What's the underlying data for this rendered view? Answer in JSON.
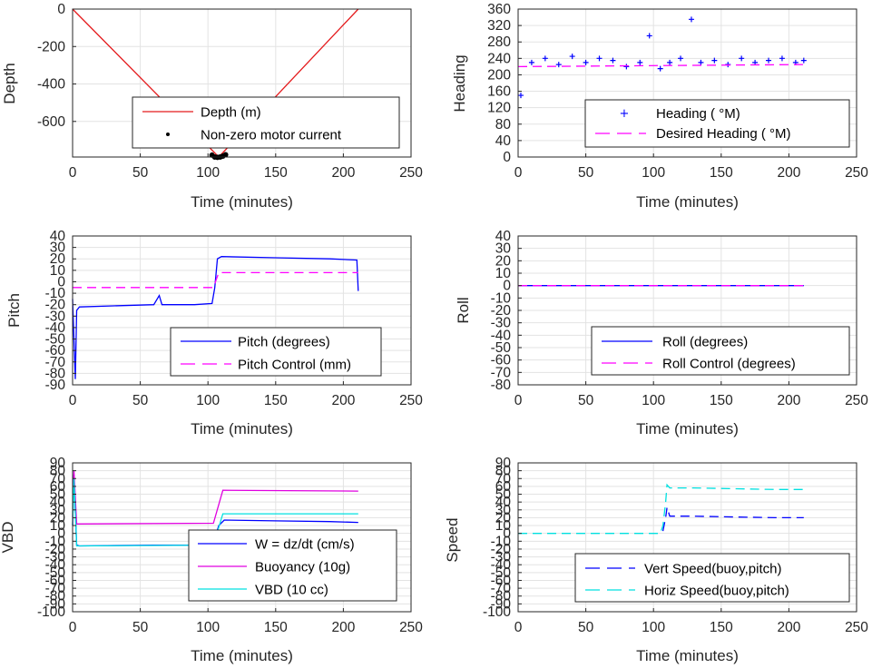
{
  "chart_data": [
    {
      "id": "depth",
      "type": "line",
      "xlabel": "Time (minutes)",
      "ylabel": "Depth",
      "xlim": [
        0,
        250
      ],
      "ylim": [
        -790,
        0
      ],
      "xticks": [
        0,
        50,
        100,
        150,
        200,
        250
      ],
      "yticks": [
        0,
        -200,
        -400,
        -600
      ],
      "series": [
        {
          "name": "Depth (m)",
          "color": "#e41a1c",
          "style": "solid",
          "x": [
            0,
            108,
            211
          ],
          "y": [
            0,
            -790,
            0
          ]
        },
        {
          "name": "Non-zero motor current",
          "color": "#000000",
          "style": "dots",
          "x": [
            103,
            105,
            107,
            109,
            111,
            113
          ],
          "y": [
            -780,
            -790,
            -792,
            -790,
            -785,
            -778
          ]
        }
      ],
      "legend": "bottom-right"
    },
    {
      "id": "heading",
      "type": "scatter",
      "xlabel": "Time (minutes)",
      "ylabel": "Heading",
      "xlim": [
        0,
        250
      ],
      "ylim": [
        0,
        360
      ],
      "xticks": [
        0,
        50,
        100,
        150,
        200,
        250
      ],
      "yticks": [
        0,
        40,
        80,
        120,
        160,
        200,
        240,
        280,
        320,
        360
      ],
      "series": [
        {
          "name": "Heading ( °M)",
          "color": "#0000ff",
          "style": "plus",
          "x": [
            2,
            10,
            20,
            30,
            40,
            50,
            60,
            70,
            80,
            90,
            97,
            105,
            112,
            120,
            128,
            135,
            145,
            155,
            165,
            175,
            185,
            195,
            205,
            211
          ],
          "y": [
            150,
            230,
            240,
            225,
            245,
            230,
            240,
            235,
            220,
            230,
            295,
            215,
            230,
            240,
            335,
            230,
            235,
            225,
            240,
            230,
            235,
            240,
            230,
            235
          ]
        },
        {
          "name": "Desired Heading ( °M)",
          "color": "#ff00ff",
          "style": "dashed",
          "x": [
            0,
            211
          ],
          "y": [
            220,
            225
          ]
        }
      ],
      "legend": "bottom-right"
    },
    {
      "id": "pitch",
      "type": "line",
      "xlabel": "Time (minutes)",
      "ylabel": "Pitch",
      "xlim": [
        0,
        250
      ],
      "ylim": [
        -90,
        40
      ],
      "xticks": [
        0,
        50,
        100,
        150,
        200,
        250
      ],
      "yticks": [
        40,
        30,
        20,
        10,
        0,
        -10,
        -20,
        -30,
        -40,
        -50,
        -60,
        -70,
        -80,
        -90
      ],
      "series": [
        {
          "name": "Pitch (degrees)",
          "color": "#0000ff",
          "style": "solid",
          "x": [
            0,
            2,
            3,
            5,
            30,
            60,
            64,
            66,
            90,
            103,
            105,
            107,
            110,
            150,
            190,
            210,
            211
          ],
          "y": [
            -15,
            -85,
            -25,
            -22,
            -21,
            -20,
            -12,
            -20,
            -20,
            -19,
            -5,
            20,
            22,
            21,
            20,
            19,
            -8
          ]
        },
        {
          "name": "Pitch Control (mm)",
          "color": "#ff00ff",
          "style": "dashed",
          "x": [
            0,
            10,
            104,
            108,
            211
          ],
          "y": [
            -5,
            -5,
            -5,
            8,
            8
          ]
        }
      ],
      "legend": "bottom-right"
    },
    {
      "id": "roll",
      "type": "line",
      "xlabel": "Time (minutes)",
      "ylabel": "Roll",
      "xlim": [
        0,
        250
      ],
      "ylim": [
        -80,
        40
      ],
      "xticks": [
        0,
        50,
        100,
        150,
        200,
        250
      ],
      "yticks": [
        40,
        30,
        20,
        10,
        0,
        -10,
        -20,
        -30,
        -40,
        -50,
        -60,
        -70,
        -80
      ],
      "series": [
        {
          "name": "Roll (degrees)",
          "color": "#0000ff",
          "style": "solid",
          "x": [
            0,
            211
          ],
          "y": [
            0,
            0
          ]
        },
        {
          "name": "Roll Control (degrees)",
          "color": "#ff00ff",
          "style": "dashed",
          "x": [
            0,
            211
          ],
          "y": [
            0,
            0
          ]
        }
      ],
      "legend": "bottom-right"
    },
    {
      "id": "vbd",
      "type": "line",
      "xlabel": "Time (minutes)",
      "ylabel": "VBD",
      "xlim": [
        0,
        250
      ],
      "ylim": [
        -100,
        90
      ],
      "xticks": [
        0,
        50,
        100,
        150,
        200,
        250
      ],
      "yticks": [
        90,
        80,
        70,
        60,
        50,
        40,
        30,
        20,
        10,
        0,
        -10,
        -20,
        -30,
        -40,
        -50,
        -60,
        -70,
        -80,
        -90,
        -100
      ],
      "series": [
        {
          "name": "W = dz/dt (cm/s)",
          "color": "#0000ff",
          "style": "solid",
          "x": [
            0,
            1,
            3,
            5,
            60,
            100,
            104,
            108,
            112,
            150,
            190,
            211
          ],
          "y": [
            10,
            75,
            -15,
            -16,
            -15,
            -15,
            -12,
            10,
            17,
            16,
            15,
            14
          ]
        },
        {
          "name": "Buoyancy (10g)",
          "color": "#e000e0",
          "style": "solid",
          "x": [
            0,
            1,
            3,
            104,
            111,
            211
          ],
          "y": [
            20,
            80,
            12,
            13,
            55,
            54
          ]
        },
        {
          "name": "VBD (10 cc)",
          "color": "#00e0e0",
          "style": "solid",
          "x": [
            0,
            1,
            3,
            104,
            111,
            211
          ],
          "y": [
            10,
            70,
            -16,
            -15,
            25,
            25
          ]
        }
      ],
      "legend": "bottom-right"
    },
    {
      "id": "speed",
      "type": "line",
      "xlabel": "Time (minutes)",
      "ylabel": "Speed",
      "xlim": [
        0,
        250
      ],
      "ylim": [
        -100,
        90
      ],
      "xticks": [
        0,
        50,
        100,
        150,
        200,
        250
      ],
      "yticks": [
        90,
        80,
        70,
        60,
        50,
        40,
        30,
        20,
        10,
        0,
        -10,
        -20,
        -30,
        -40,
        -50,
        -60,
        -70,
        -80,
        -90,
        -100
      ],
      "series": [
        {
          "name": "Vert Speed(buoy,pitch)",
          "color": "#0000ff",
          "style": "dashed",
          "x": [
            107,
            109,
            110,
            112,
            130,
            160,
            190,
            211
          ],
          "y": [
            3,
            20,
            33,
            22,
            22,
            21,
            20,
            20
          ]
        },
        {
          "name": "Horiz Speed(buoy,pitch)",
          "color": "#00e0e0",
          "style": "dashed",
          "x": [
            0,
            105,
            107,
            109,
            110,
            112,
            130,
            160,
            190,
            211
          ],
          "y": [
            0,
            0,
            10,
            40,
            62,
            58,
            58,
            57,
            56,
            56
          ]
        }
      ],
      "legend": "bottom-right"
    }
  ]
}
